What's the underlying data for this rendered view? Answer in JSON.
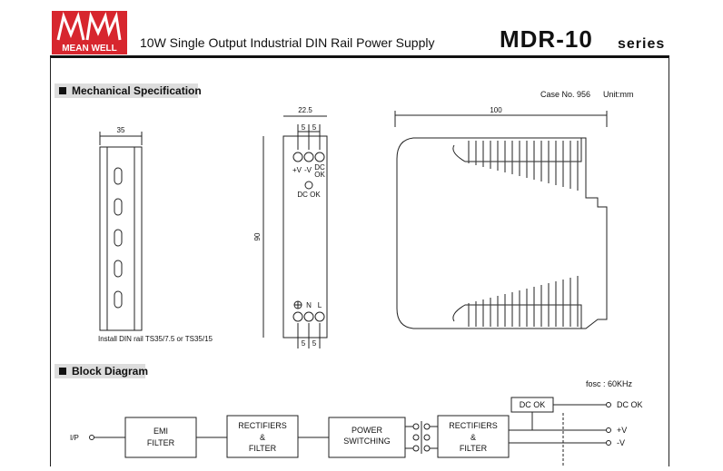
{
  "header": {
    "logo": "MEAN WELL",
    "subtitle": "10W Single Output Industrial DIN Rail Power Supply",
    "model": "MDR-10",
    "series": "series"
  },
  "mechanical": {
    "title": "Mechanical Specification",
    "case": "Case No. 956",
    "unit": "Unit:mm",
    "rail_width": "35",
    "rail_note": "Install DIN rail TS35/7.5 or TS35/15",
    "front_width": "22.5",
    "top_pitch": [
      "5",
      "5"
    ],
    "top_terminals": [
      "+V",
      "-V"
    ],
    "top_dcok": [
      "DC",
      "OK"
    ],
    "led_label": "DC OK",
    "height": "90",
    "bottom_terminals": [
      "N",
      "L"
    ],
    "bottom_pitch": [
      "5",
      "5"
    ],
    "depth": "100"
  },
  "block": {
    "title": "Block Diagram",
    "fosc": "fosc : 60KHz",
    "input": "I/P",
    "blocks": [
      [
        "EMI",
        "FILTER"
      ],
      [
        "RECTIFIERS",
        "&",
        "FILTER"
      ],
      [
        "POWER",
        "SWITCHING"
      ],
      [
        "RECTIFIERS",
        "&",
        "FILTER"
      ],
      [
        "DC OK"
      ]
    ],
    "outputs": [
      "DC OK",
      "+V",
      "-V"
    ]
  }
}
